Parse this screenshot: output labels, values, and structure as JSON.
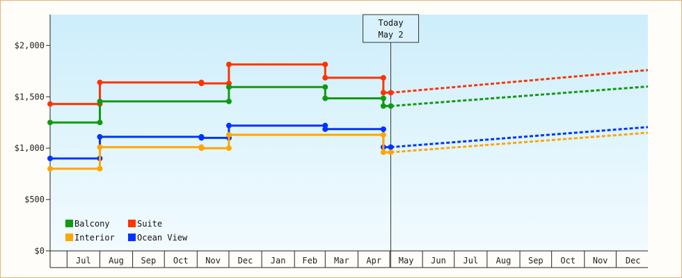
{
  "chart_data": {
    "type": "line",
    "step": true,
    "grid": false,
    "legend_position": "bottom-left",
    "x_axis": {
      "kind": "date",
      "range": [
        "2019-06-15",
        "2020-12-31"
      ],
      "tick_labels": [
        "Jul",
        "Aug",
        "Sep",
        "Oct",
        "Nov",
        "Dec",
        "Jan",
        "Feb",
        "Mar",
        "Apr",
        "May",
        "Jun",
        "Jul",
        "Aug",
        "Sep",
        "Oct",
        "Nov",
        "Dec"
      ],
      "month_starts": [
        "2019-07-01",
        "2019-08-01",
        "2019-09-01",
        "2019-10-01",
        "2019-11-01",
        "2019-12-01",
        "2020-01-01",
        "2020-02-01",
        "2020-03-01",
        "2020-04-01",
        "2020-05-01",
        "2020-06-01",
        "2020-07-01",
        "2020-08-01",
        "2020-09-01",
        "2020-10-01",
        "2020-11-01",
        "2020-12-01"
      ]
    },
    "y_axis": {
      "range": [
        0,
        2300
      ],
      "ticks": [
        0,
        500,
        1000,
        1500,
        2000
      ],
      "tick_labels": [
        "$0",
        "$500",
        "$1,000",
        "$1,500",
        "$2,000"
      ]
    },
    "today": {
      "date": "2020-05-02",
      "label_line1": "Today",
      "label_line2": "May 2"
    },
    "series": [
      {
        "name": "Suite",
        "color": "#ff3300",
        "history": [
          [
            "2019-06-15",
            1430
          ],
          [
            "2019-08-01",
            1430
          ],
          [
            "2019-08-01",
            1640
          ],
          [
            "2019-11-05",
            1640
          ],
          [
            "2019-11-05",
            1630
          ],
          [
            "2019-12-01",
            1630
          ],
          [
            "2019-12-01",
            1815
          ],
          [
            "2020-03-01",
            1815
          ],
          [
            "2020-03-01",
            1685
          ],
          [
            "2020-04-25",
            1685
          ],
          [
            "2020-04-25",
            1540
          ],
          [
            "2020-05-02",
            1540
          ]
        ],
        "forecast": [
          [
            "2020-05-02",
            1540
          ],
          [
            "2020-12-31",
            1760
          ]
        ]
      },
      {
        "name": "Balcony",
        "color": "#119911",
        "history": [
          [
            "2019-06-15",
            1250
          ],
          [
            "2019-08-01",
            1250
          ],
          [
            "2019-08-01",
            1455
          ],
          [
            "2019-11-05",
            1455
          ],
          [
            "2019-12-01",
            1455
          ],
          [
            "2019-12-01",
            1595
          ],
          [
            "2020-03-01",
            1595
          ],
          [
            "2020-03-01",
            1485
          ],
          [
            "2020-04-25",
            1485
          ],
          [
            "2020-04-25",
            1410
          ],
          [
            "2020-05-02",
            1410
          ]
        ],
        "forecast": [
          [
            "2020-05-02",
            1410
          ],
          [
            "2020-12-31",
            1600
          ]
        ]
      },
      {
        "name": "Ocean View",
        "color": "#0033ff",
        "history": [
          [
            "2019-06-15",
            900
          ],
          [
            "2019-08-01",
            900
          ],
          [
            "2019-08-01",
            1110
          ],
          [
            "2019-11-05",
            1110
          ],
          [
            "2019-11-05",
            1100
          ],
          [
            "2019-12-01",
            1100
          ],
          [
            "2019-12-01",
            1220
          ],
          [
            "2020-03-01",
            1220
          ],
          [
            "2020-03-01",
            1185
          ],
          [
            "2020-04-25",
            1185
          ],
          [
            "2020-04-25",
            1010
          ],
          [
            "2020-05-02",
            1010
          ]
        ],
        "forecast": [
          [
            "2020-05-02",
            1010
          ],
          [
            "2020-12-31",
            1205
          ]
        ]
      },
      {
        "name": "Interior",
        "color": "#ffa500",
        "history": [
          [
            "2019-06-15",
            800
          ],
          [
            "2019-08-01",
            800
          ],
          [
            "2019-08-01",
            1010
          ],
          [
            "2019-11-05",
            1010
          ],
          [
            "2019-11-05",
            1000
          ],
          [
            "2019-12-01",
            1000
          ],
          [
            "2019-12-01",
            1130
          ],
          [
            "2020-03-01",
            1130
          ],
          [
            "2020-04-25",
            1130
          ],
          [
            "2020-04-25",
            960
          ],
          [
            "2020-05-02",
            960
          ]
        ],
        "forecast": [
          [
            "2020-05-02",
            960
          ],
          [
            "2020-12-31",
            1150
          ]
        ]
      }
    ],
    "legend": [
      {
        "name": "Balcony",
        "color": "#119911"
      },
      {
        "name": "Suite",
        "color": "#ff3300"
      },
      {
        "name": "Interior",
        "color": "#ffa500"
      },
      {
        "name": "Ocean View",
        "color": "#0033ff"
      }
    ]
  }
}
